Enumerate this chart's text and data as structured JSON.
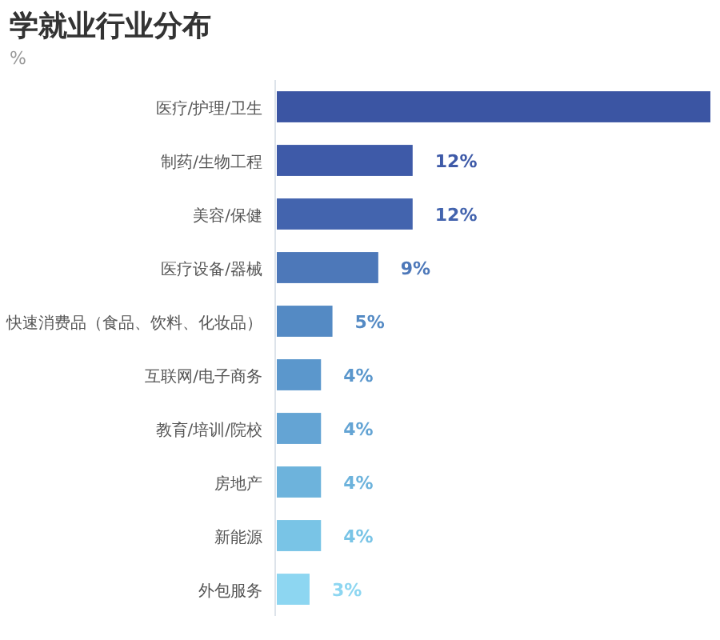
{
  "chart_data": {
    "type": "bar",
    "orientation": "horizontal",
    "title": "学就业行业分布",
    "subtitle": "%",
    "categories": [
      "医疗/护理/卫生",
      "制药/生物工程",
      "美容/保健",
      "医疗设备/器械",
      "快速消费品（食品、饮料、化妆品）",
      "互联网/电子商务",
      "教育/培训/院校",
      "房地产",
      "新能源",
      "外包服务"
    ],
    "values": [
      38,
      12,
      12,
      9,
      5,
      4,
      4,
      4,
      4,
      3
    ],
    "colors": [
      "#3b55a3",
      "#3e5aa8",
      "#4364ae",
      "#4d78b9",
      "#548ac4",
      "#5b97cc",
      "#64a4d4",
      "#6db3dc",
      "#79c4e6",
      "#8dd6f1"
    ],
    "value_labels": [
      null,
      "12%",
      "12%",
      "9%",
      "5%",
      "4%",
      "4%",
      "4%",
      "4%",
      "3%"
    ]
  }
}
